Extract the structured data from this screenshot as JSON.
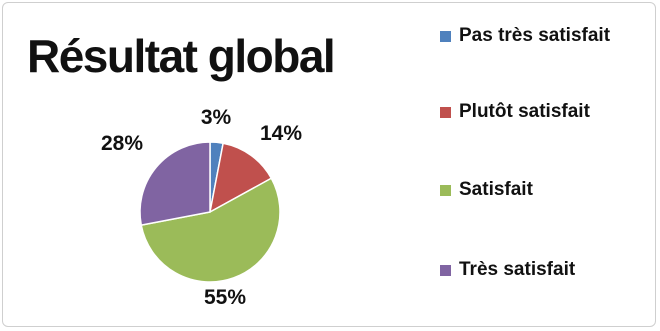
{
  "chart_data": {
    "type": "pie",
    "title": "Résultat global",
    "categories": [
      "Pas très satisfait",
      "Plutôt satisfait",
      "Satisfait",
      "Très satisfait"
    ],
    "values": [
      3,
      14,
      55,
      28
    ],
    "value_labels": [
      "3%",
      "14%",
      "55%",
      "28%"
    ],
    "colors": [
      "#4f81bd",
      "#c0504d",
      "#9bbb59",
      "#8064a2"
    ],
    "legend_position": "right"
  }
}
